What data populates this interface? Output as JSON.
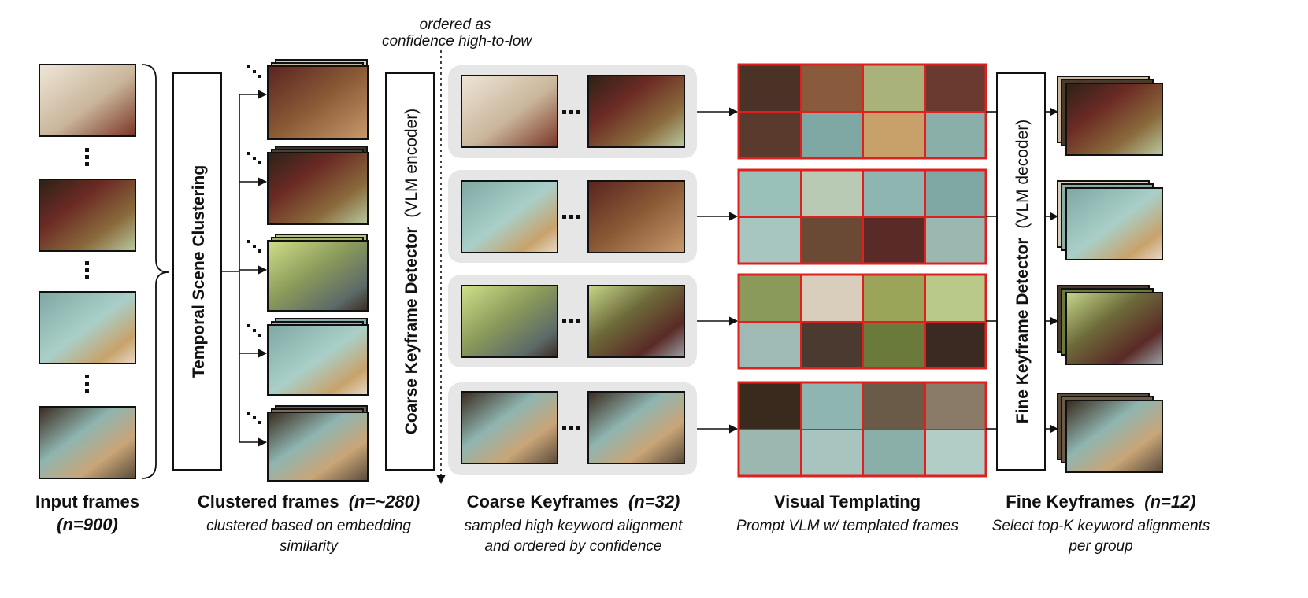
{
  "top_note": {
    "line1": "ordered as",
    "line2": "confidence high-to-low"
  },
  "clustering_label": "Temporal Scene Clustering",
  "coarse_detector": {
    "title": "Coarse Keyframe Detector",
    "paren": "(VLM encoder)"
  },
  "fine_detector": {
    "title": "Fine Keyframe Detector",
    "paren": "(VLM decoder)"
  },
  "captions": {
    "input": {
      "title": "Input frames",
      "count": "(n=900)"
    },
    "clustered": {
      "title": "Clustered frames",
      "count": "(n=~280)",
      "sub1": "clustered based on embedding",
      "sub2": "similarity"
    },
    "coarse": {
      "title": "Coarse Keyframes",
      "count": "(n=32)",
      "sub1": "sampled high keyword alignment",
      "sub2": "and ordered by confidence"
    },
    "templating": {
      "title": "Visual Templating",
      "sub1": "Prompt VLM w/ templated frames"
    },
    "fine": {
      "title": "Fine Keyframes",
      "count": "(n=12)",
      "sub1": "Select top-K keyword alignments",
      "sub2": "per group"
    }
  },
  "colors": {
    "template_border": "#e0201e",
    "panel_bg": "#e6e6e6"
  }
}
